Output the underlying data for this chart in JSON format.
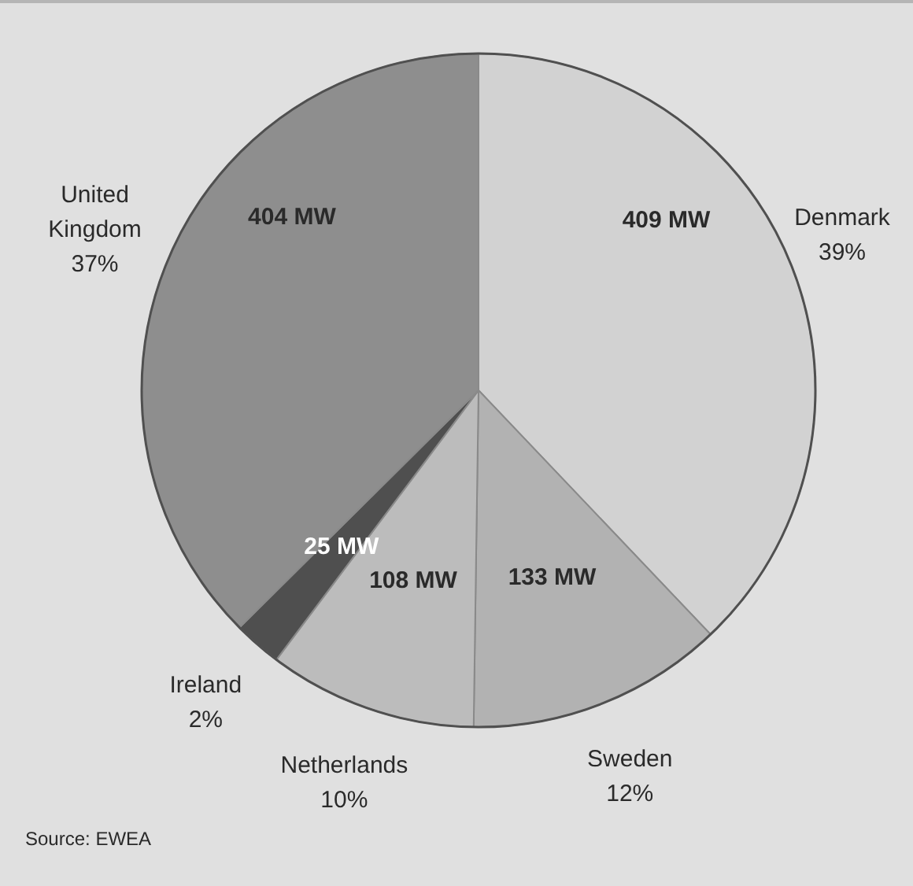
{
  "chart_data": {
    "type": "pie",
    "categories": [
      "Denmark",
      "Sweden",
      "Netherlands",
      "Ireland",
      "United Kingdom"
    ],
    "values": [
      409,
      133,
      108,
      25,
      404
    ],
    "colors": [
      "#d2d2d2",
      "#b2b2b2",
      "#bcbcbc",
      "#4f4f4f",
      "#8e8e8e"
    ],
    "value_labels": [
      "409 MW",
      "133 MW",
      "108 MW",
      "25 MW",
      "404 MW"
    ],
    "annotations": [
      "39%",
      "12%",
      "10%",
      "2%",
      "37%",
      "Source: EWEA"
    ]
  }
}
